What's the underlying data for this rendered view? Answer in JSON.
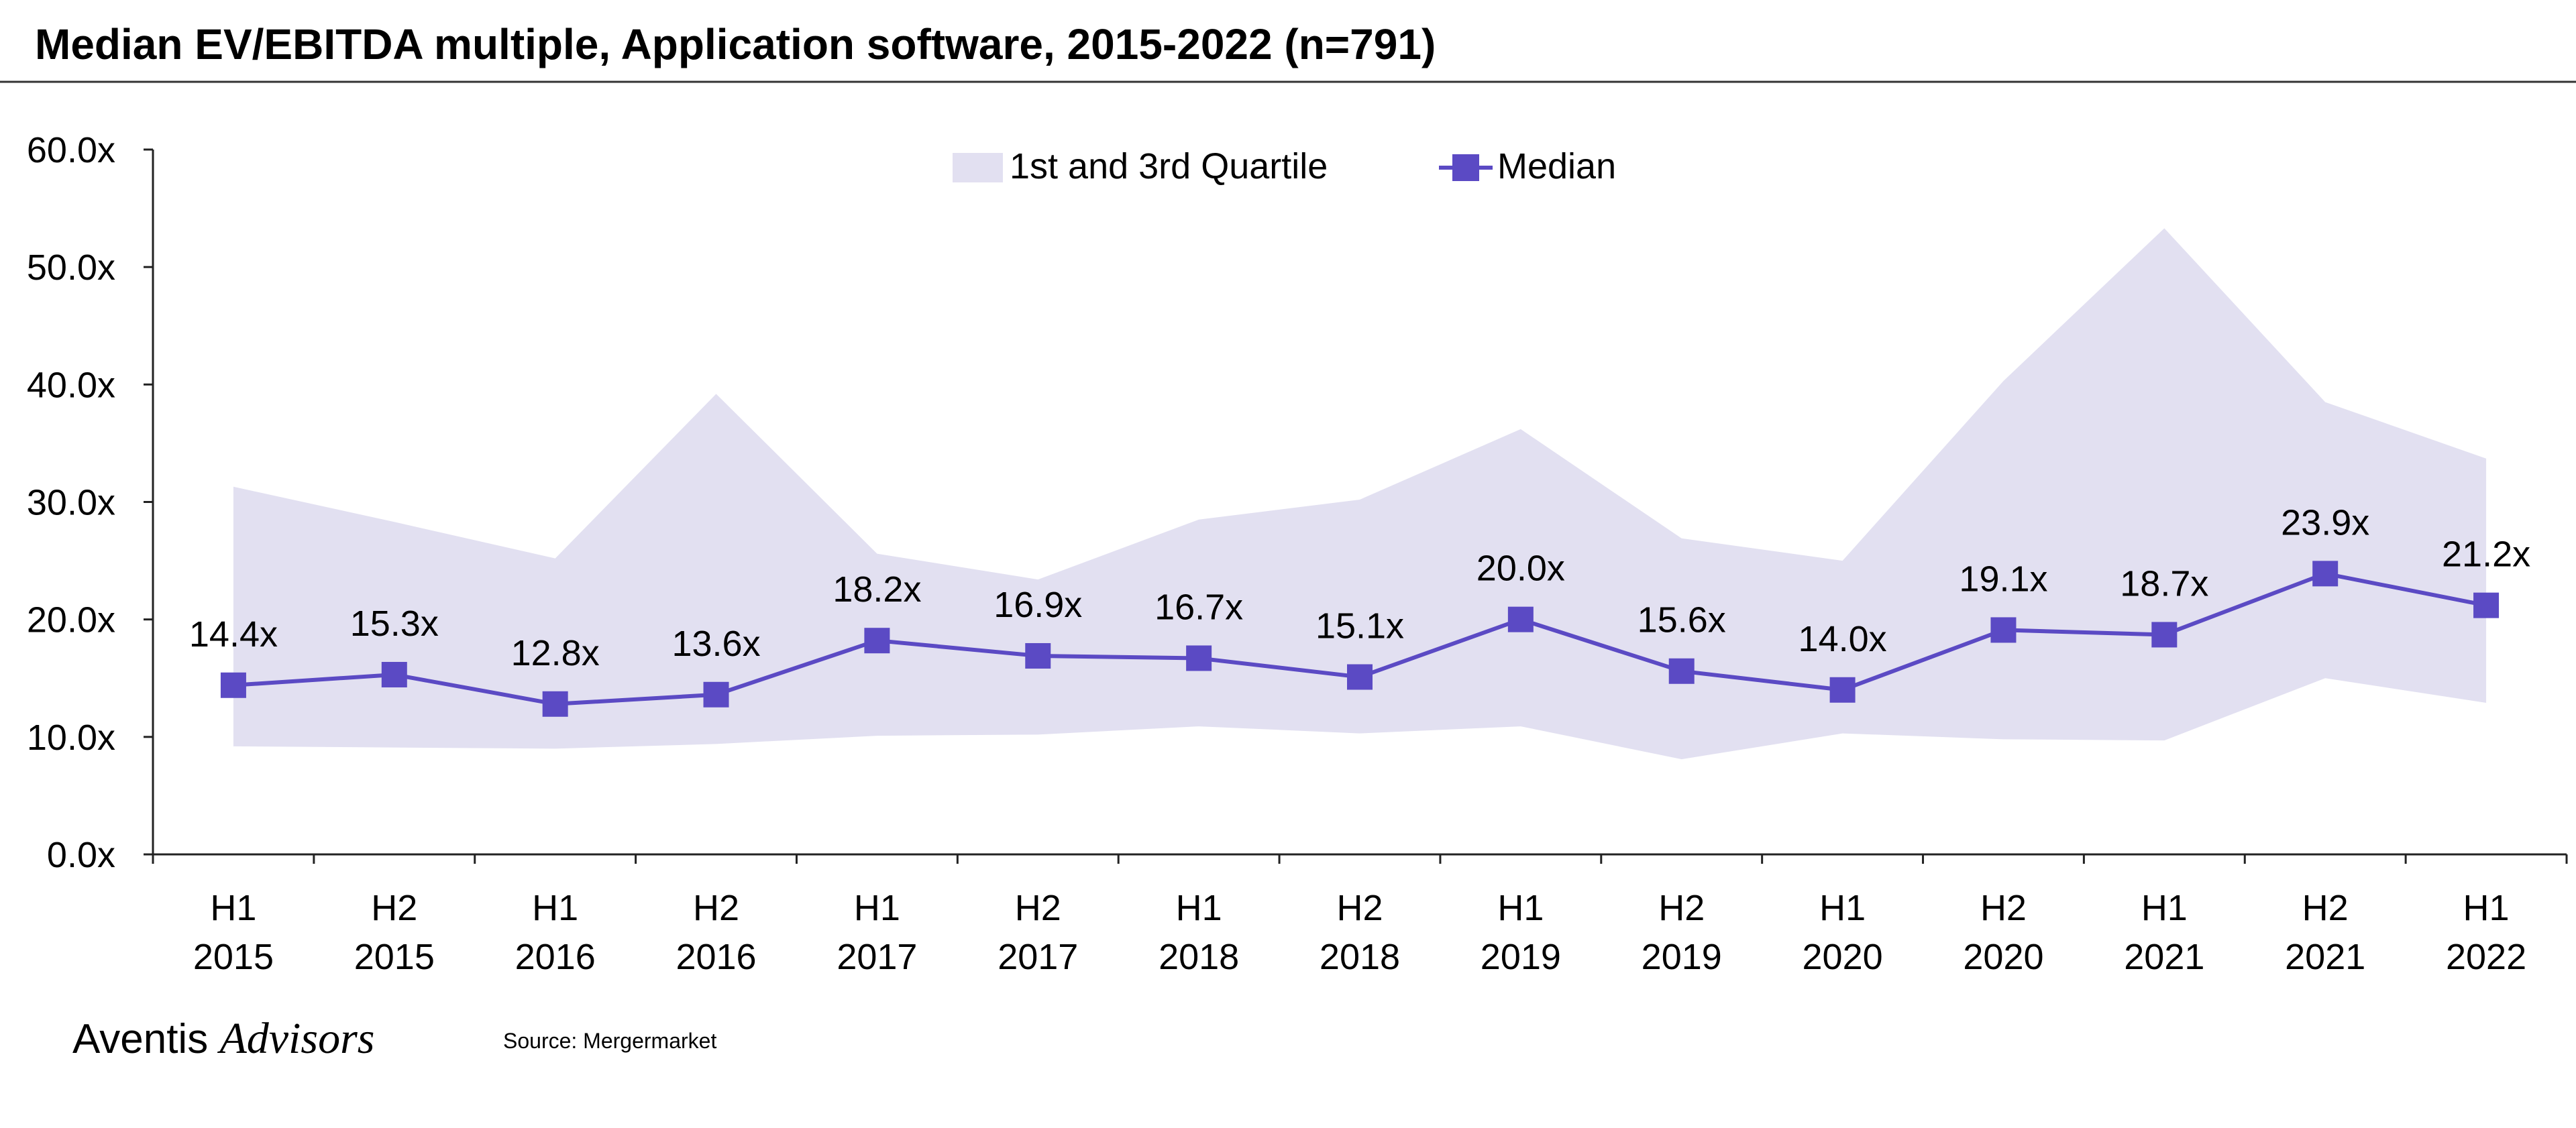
{
  "chart_data": {
    "type": "line",
    "title": "Median EV/EBITDA multiple, Application software, 2015-2022 (n=791)",
    "categories": [
      [
        "H1",
        "2015"
      ],
      [
        "H2",
        "2015"
      ],
      [
        "H1",
        "2016"
      ],
      [
        "H2",
        "2016"
      ],
      [
        "H1",
        "2017"
      ],
      [
        "H2",
        "2017"
      ],
      [
        "H1",
        "2018"
      ],
      [
        "H2",
        "2018"
      ],
      [
        "H1",
        "2019"
      ],
      [
        "H2",
        "2019"
      ],
      [
        "H1",
        "2020"
      ],
      [
        "H2",
        "2020"
      ],
      [
        "H1",
        "2021"
      ],
      [
        "H2",
        "2021"
      ],
      [
        "H1",
        "2022"
      ]
    ],
    "ylim": [
      0,
      60
    ],
    "yticks": [
      0,
      10,
      20,
      30,
      40,
      50,
      60
    ],
    "ytick_labels": [
      "0.0x",
      "10.0x",
      "20.0x",
      "30.0x",
      "40.0x",
      "50.0x",
      "60.0x"
    ],
    "grid": false,
    "legend_position": "top-center",
    "series": [
      {
        "name": "1st and 3rd Quartile",
        "kind": "band",
        "color": "#e2e0f1",
        "upper": [
          31.3,
          28.3,
          25.2,
          39.2,
          25.6,
          23.4,
          28.5,
          30.2,
          36.2,
          26.9,
          25.0,
          40.3,
          53.3,
          38.5,
          33.7
        ],
        "lower": [
          9.2,
          9.1,
          9.0,
          9.4,
          10.1,
          10.2,
          10.9,
          10.3,
          10.9,
          8.1,
          10.3,
          9.8,
          9.7,
          15.0,
          12.9
        ]
      },
      {
        "name": "Median",
        "kind": "line",
        "color": "#5b4ac4",
        "values": [
          14.4,
          15.3,
          12.8,
          13.6,
          18.2,
          16.9,
          16.7,
          15.1,
          20.0,
          15.6,
          14.0,
          19.1,
          18.7,
          23.9,
          21.2
        ],
        "labels": [
          "14.4x",
          "15.3x",
          "12.8x",
          "13.6x",
          "18.2x",
          "16.9x",
          "16.7x",
          "15.1x",
          "20.0x",
          "15.6x",
          "14.0x",
          "19.1x",
          "18.7x",
          "23.9x",
          "21.2x"
        ]
      }
    ]
  },
  "footer": {
    "logo_regular": "Aventis",
    "logo_italic": "Advisors",
    "source": "Source: Mergermarket"
  }
}
